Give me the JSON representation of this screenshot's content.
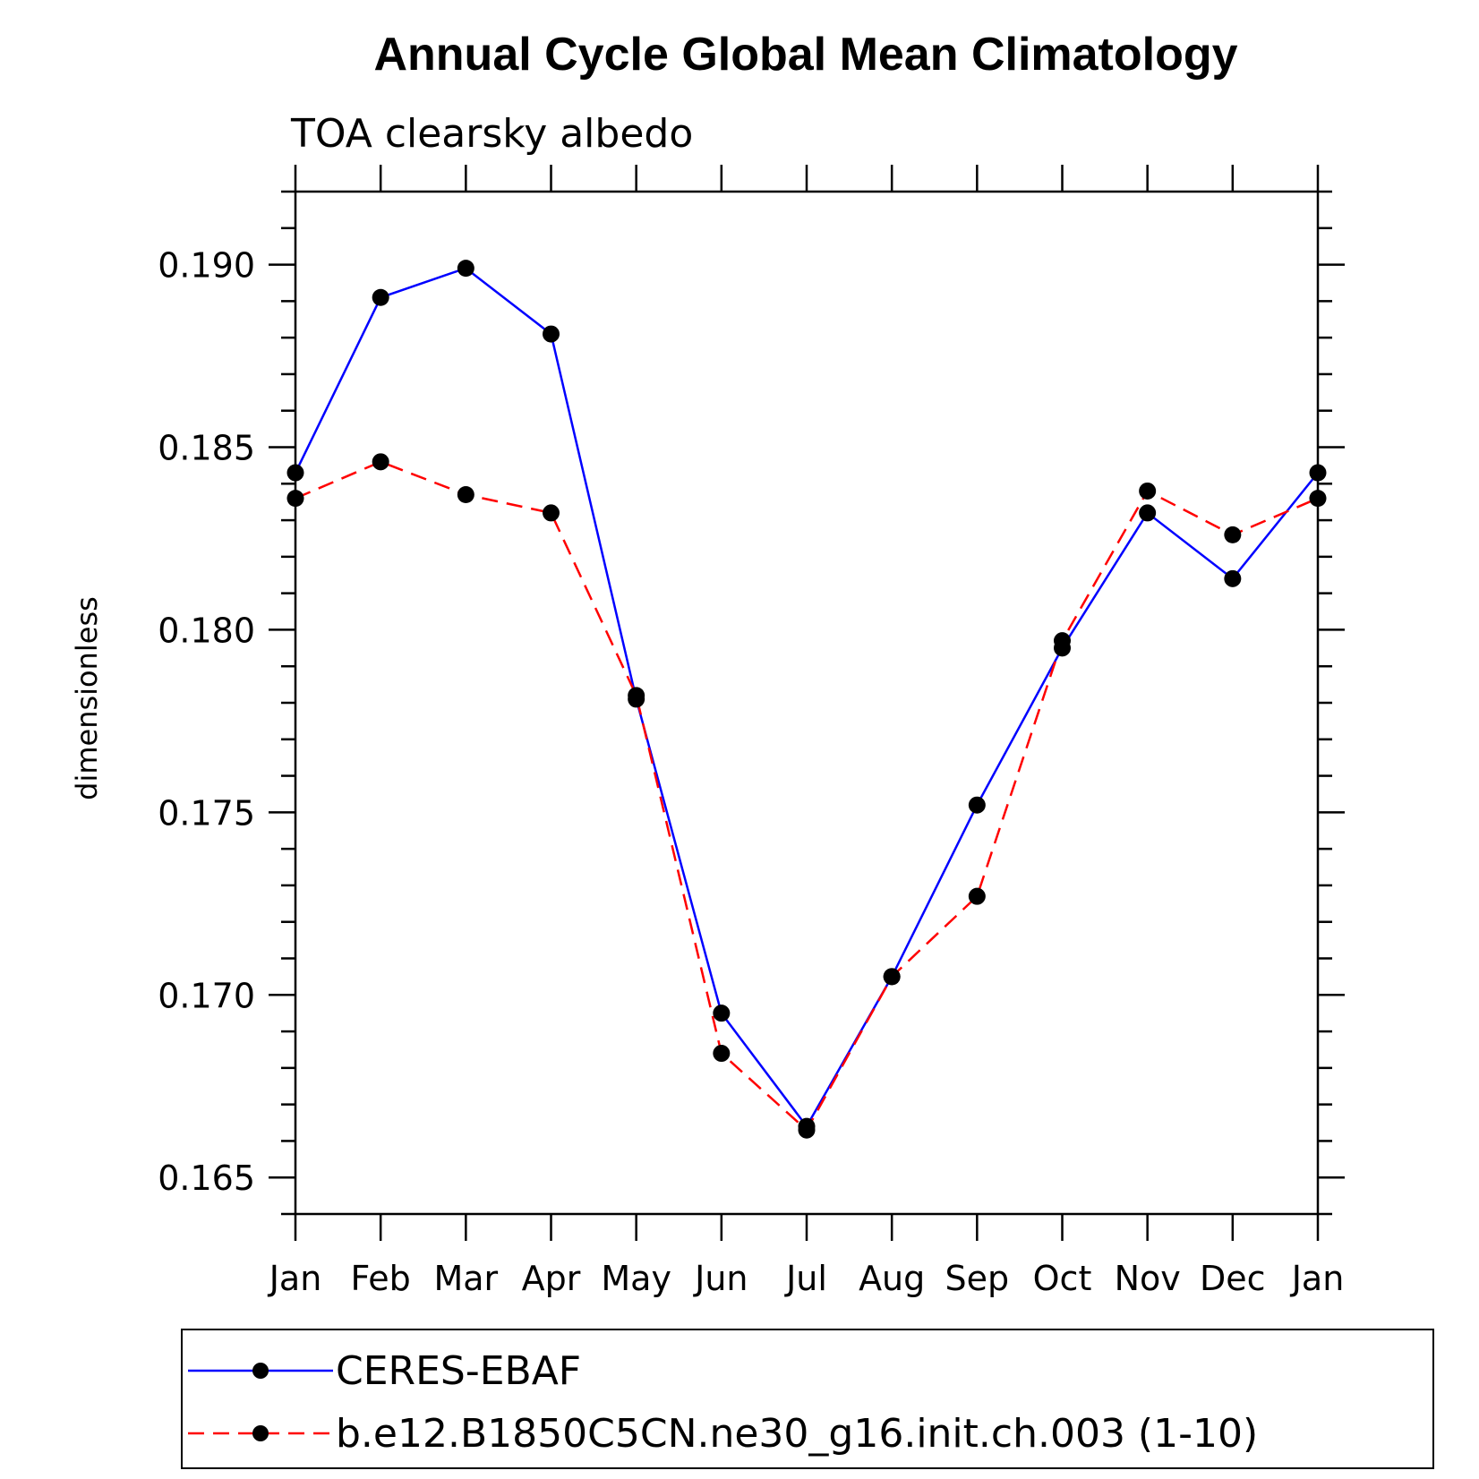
{
  "chart_data": {
    "type": "line",
    "title": "Annual Cycle Global Mean Climatology",
    "subtitle": "TOA clearsky albedo",
    "xlabel": "",
    "ylabel": "dimensionless",
    "categories": [
      "Jan",
      "Feb",
      "Mar",
      "Apr",
      "May",
      "Jun",
      "Jul",
      "Aug",
      "Sep",
      "Oct",
      "Nov",
      "Dec",
      "Jan"
    ],
    "ylim": [
      0.164,
      0.192
    ],
    "yticks": [
      0.165,
      0.17,
      0.175,
      0.18,
      0.185,
      0.19
    ],
    "ytick_labels": [
      "0.165",
      "0.170",
      "0.175",
      "0.180",
      "0.185",
      "0.190"
    ],
    "y_minor_step": 0.001,
    "legend_position": "bottom",
    "series": [
      {
        "name": "CERES-EBAF",
        "color": "#0000ff",
        "style": "solid",
        "marker": "circle",
        "values": [
          0.1843,
          0.1891,
          0.1899,
          0.1881,
          0.1781,
          0.1695,
          0.1664,
          0.1705,
          0.1752,
          0.1795,
          0.1832,
          0.1814,
          0.1843
        ]
      },
      {
        "name": "b.e12.B1850C5CN.ne30_g16.init.ch.003 (1-10)",
        "color": "#ff0000",
        "style": "dashed",
        "marker": "circle",
        "values": [
          0.1836,
          0.1846,
          0.1837,
          0.1832,
          0.1782,
          0.1684,
          0.1663,
          0.1705,
          0.1727,
          0.1797,
          0.1838,
          0.1826,
          0.1836
        ]
      }
    ]
  }
}
